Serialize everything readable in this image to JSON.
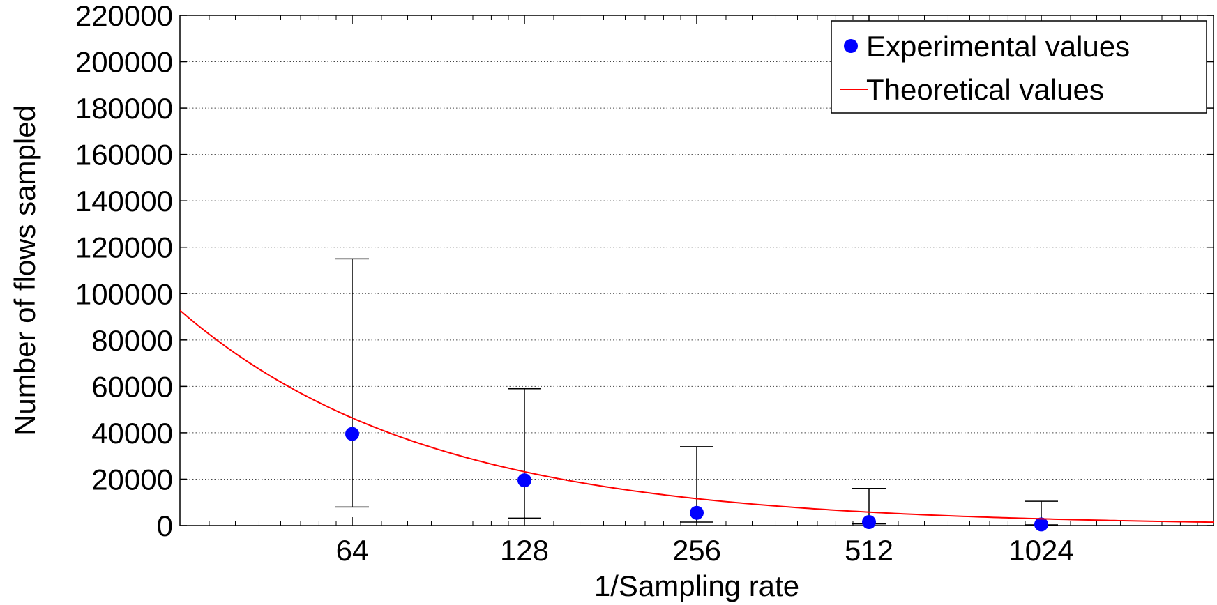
{
  "chart_data": {
    "type": "scatter",
    "title": "",
    "xlabel": "1/Sampling rate",
    "ylabel": "Number of flows sampled",
    "x_scale": "log2",
    "xlim": [
      32,
      2048
    ],
    "ylim": [
      0,
      220000
    ],
    "x_ticks": [
      64,
      128,
      256,
      512,
      1024
    ],
    "x_tick_labels": [
      "64",
      "128",
      "256",
      "512",
      "1024"
    ],
    "y_ticks": [
      0,
      20000,
      40000,
      60000,
      80000,
      100000,
      120000,
      140000,
      160000,
      180000,
      200000,
      220000
    ],
    "y_tick_labels": [
      "0",
      "20000",
      "40000",
      "60000",
      "80000",
      "100000",
      "120000",
      "140000",
      "160000",
      "180000",
      "200000",
      "220000"
    ],
    "grid": true,
    "legend_position": "top-right",
    "series": [
      {
        "name": "Experimental values",
        "kind": "points_with_errorbars",
        "color": "#0000ff",
        "x": [
          64,
          128,
          256,
          512,
          1024
        ],
        "y": [
          39500,
          19500,
          5500,
          1500,
          500
        ],
        "y_low": [
          8000,
          3200,
          1500,
          700,
          300
        ],
        "y_high": [
          115000,
          59000,
          34000,
          16000,
          10500
        ]
      },
      {
        "name": "Theoretical values",
        "kind": "line",
        "color": "#ff0000",
        "x": [
          32,
          64,
          128,
          256,
          512,
          1024,
          2048
        ],
        "y": [
          92800,
          46400,
          23200,
          11600,
          5800,
          2900,
          1450
        ]
      }
    ]
  }
}
